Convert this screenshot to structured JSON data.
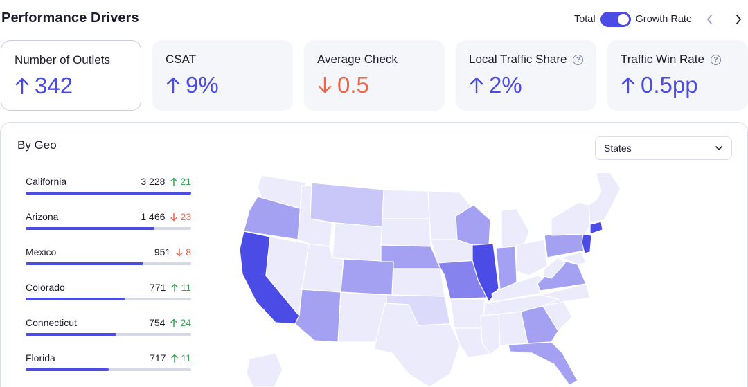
{
  "header": {
    "title": "Performance Drivers",
    "toggle_left_label": "Total",
    "toggle_right_label": "Growth Rate"
  },
  "kpis": [
    {
      "label": "Number of Outlets",
      "value": "342",
      "trend": "up",
      "help": false
    },
    {
      "label": "CSAT",
      "value": "9%",
      "trend": "up",
      "help": false
    },
    {
      "label": "Average Check",
      "value": "0.5",
      "trend": "down",
      "help": false
    },
    {
      "label": "Local Traffic Share",
      "value": "2%",
      "trend": "up",
      "help": true
    },
    {
      "label": "Traffic Win Rate",
      "value": "0.5pp",
      "trend": "up",
      "help": true
    }
  ],
  "geo": {
    "title": "By Geo",
    "select_value": "States",
    "items": [
      {
        "name": "California",
        "count": "3 228",
        "delta": "21",
        "trend": "up",
        "share": 1.0
      },
      {
        "name": "Arizona",
        "count": "1 466",
        "delta": "23",
        "trend": "down",
        "share": 0.78
      },
      {
        "name": "Mexico",
        "count": "951",
        "delta": "8",
        "trend": "down",
        "share": 0.71
      },
      {
        "name": "Colorado",
        "count": "771",
        "delta": "11",
        "trend": "up",
        "share": 0.6
      },
      {
        "name": "Connecticut",
        "count": "754",
        "delta": "24",
        "trend": "up",
        "share": 0.55
      },
      {
        "name": "Florida",
        "count": "717",
        "delta": "11",
        "trend": "up",
        "share": 0.5
      }
    ]
  },
  "colors": {
    "accent": "#4b4be6",
    "negative": "#f0654a",
    "positive": "#34a853",
    "map_shades": [
      "#ecebfb",
      "#dcdafa",
      "#c9c6f8",
      "#a4a0f2",
      "#8783ee",
      "#4b4be6"
    ]
  },
  "icons": {
    "prev": "chevron-left-icon",
    "next": "chevron-right-icon",
    "dropdown": "chevron-down-icon",
    "help": "question-circle-icon",
    "up": "arrow-up-icon",
    "down": "arrow-down-icon"
  }
}
